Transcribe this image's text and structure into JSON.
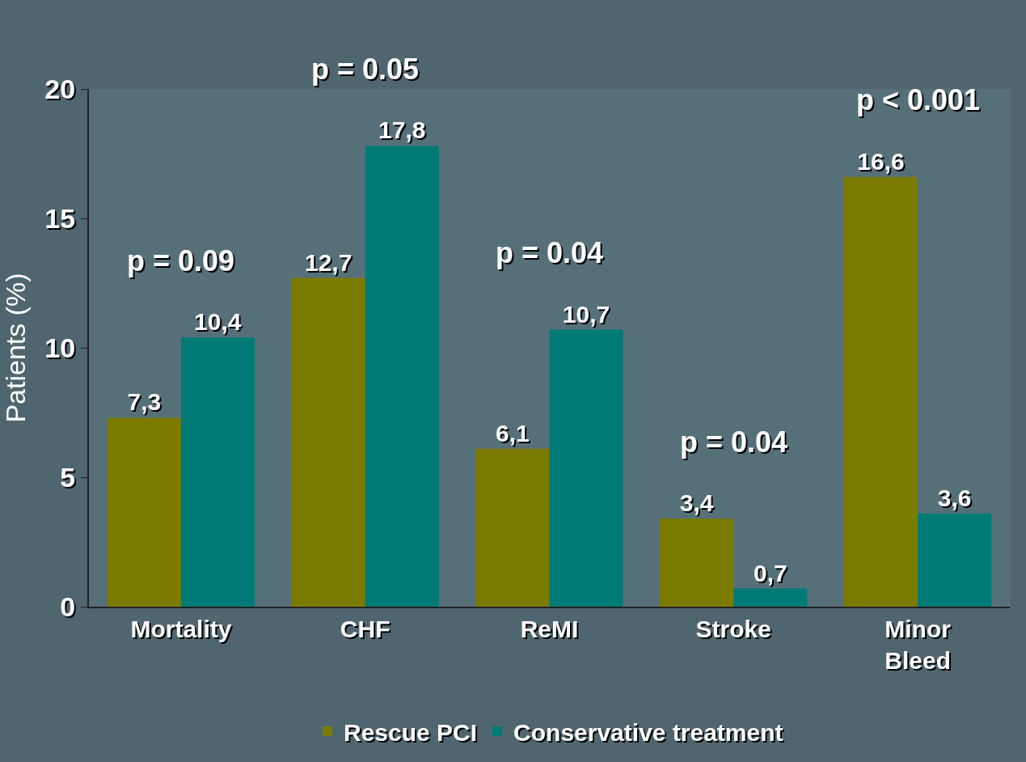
{
  "chart_data": {
    "type": "bar",
    "ylabel": "Patients (%)",
    "categories": [
      "Mortality",
      "CHF",
      "ReMI",
      "Stroke",
      "Minor Bleed"
    ],
    "series": [
      {
        "name": "Rescue PCI",
        "color": "#7b7b00",
        "values": [
          7.3,
          12.7,
          6.1,
          3.4,
          16.6
        ],
        "value_labels": [
          "7,3",
          "12,7",
          "6,1",
          "3,4",
          "16,6"
        ]
      },
      {
        "name": "Conservative treatment",
        "color": "#007a74",
        "values": [
          10.4,
          17.8,
          10.7,
          0.7,
          3.6
        ],
        "value_labels": [
          "10,4",
          "17,8",
          "10,7",
          "0,7",
          "3,6"
        ]
      }
    ],
    "ylim": [
      0,
      20
    ],
    "yticks": [
      0,
      5,
      10,
      15,
      20
    ],
    "grid": false,
    "legend": "bottom",
    "annotations": [
      "p = 0.09",
      "p = 0.05",
      "p = 0.04",
      "p = 0.04",
      "p < 0.001"
    ]
  }
}
